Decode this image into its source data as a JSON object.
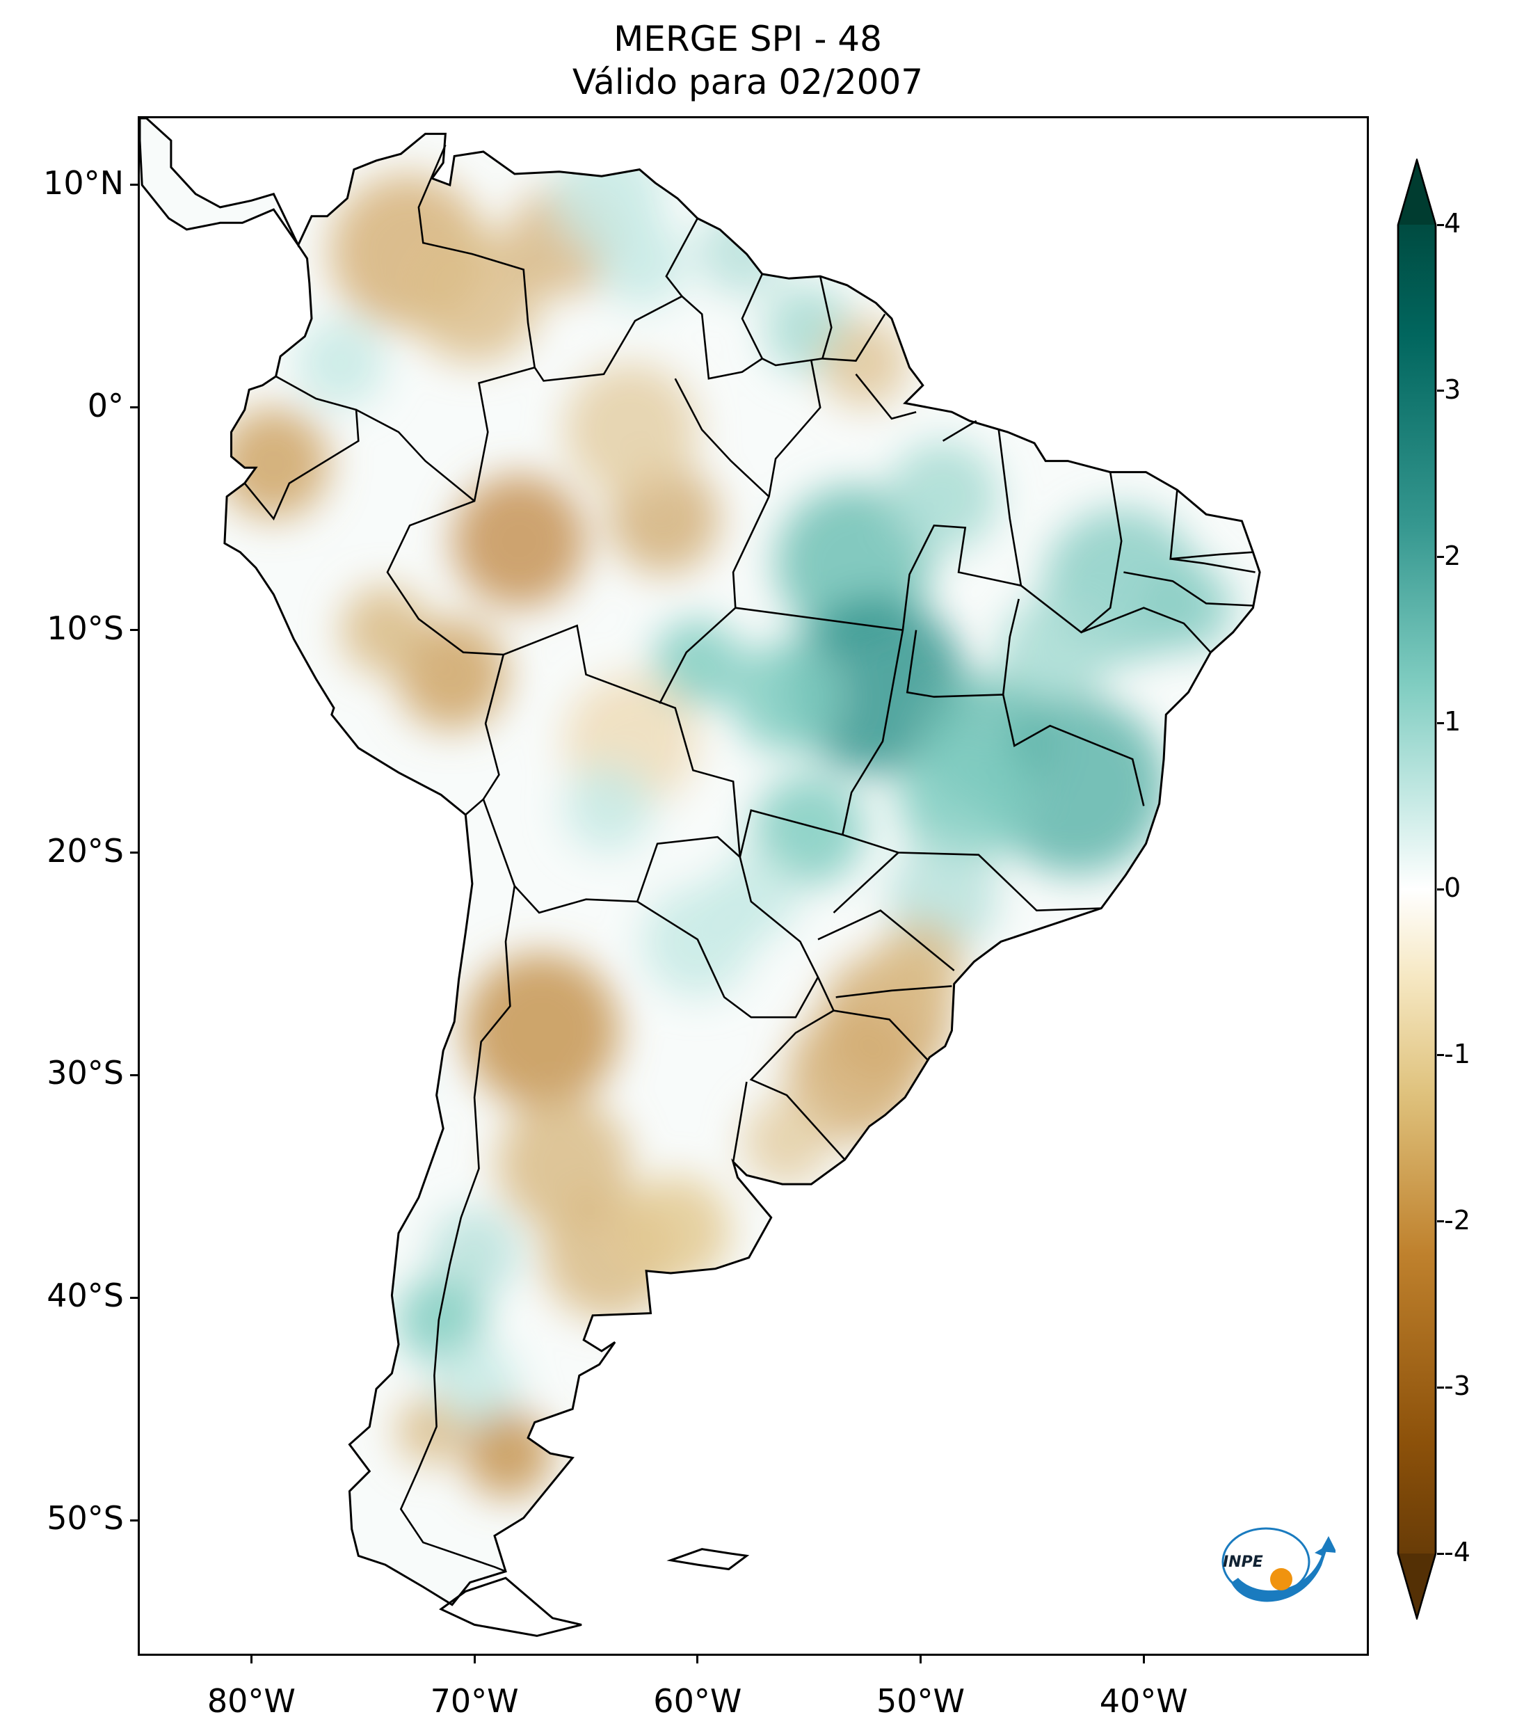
{
  "title": {
    "line1": "MERGE   SPI - 48",
    "line2": "Válido para 02/2007"
  },
  "map": {
    "lon_range": [
      -85,
      -30
    ],
    "lat_range": [
      -56,
      13
    ],
    "y_ticks": [
      {
        "lat": 10,
        "label": "10°N"
      },
      {
        "lat": 0,
        "label": "0°"
      },
      {
        "lat": -10,
        "label": "10°S"
      },
      {
        "lat": -20,
        "label": "20°S"
      },
      {
        "lat": -30,
        "label": "30°S"
      },
      {
        "lat": -40,
        "label": "40°S"
      },
      {
        "lat": -50,
        "label": "50°S"
      }
    ],
    "x_ticks": [
      {
        "lon": -80,
        "label": "80°W"
      },
      {
        "lon": -70,
        "label": "70°W"
      },
      {
        "lon": -60,
        "label": "60°W"
      },
      {
        "lon": -50,
        "label": "50°W"
      },
      {
        "lon": -40,
        "label": "40°W"
      }
    ]
  },
  "colorbar": {
    "min": -4,
    "max": 4,
    "ticks": [
      {
        "value": 4,
        "label": "4"
      },
      {
        "value": 3,
        "label": "3"
      },
      {
        "value": 2,
        "label": "2"
      },
      {
        "value": 1,
        "label": "1"
      },
      {
        "value": 0,
        "label": "0"
      },
      {
        "value": -1,
        "label": "-1"
      },
      {
        "value": -2,
        "label": "-2"
      },
      {
        "value": -3,
        "label": "-3"
      },
      {
        "value": -4,
        "label": "-4"
      }
    ],
    "colors": [
      "#543005",
      "#8c510a",
      "#bf812d",
      "#dfc27d",
      "#f6e8c3",
      "#ffffff",
      "#c7eae5",
      "#80cdc1",
      "#35978f",
      "#01665e",
      "#003c30"
    ]
  },
  "logo": {
    "text": "INPE",
    "blue": "#1a7bbf",
    "orange": "#f0930f"
  }
}
